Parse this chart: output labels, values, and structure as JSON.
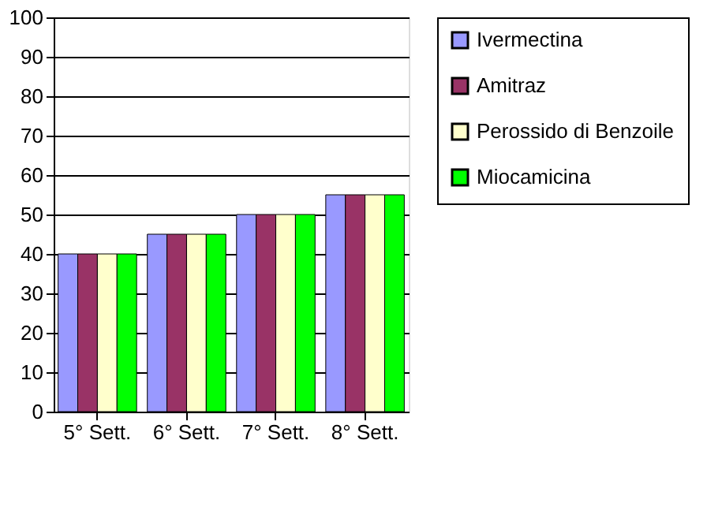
{
  "chart_data": {
    "type": "bar",
    "categories": [
      "5° Sett.",
      "6° Sett.",
      "7° Sett.",
      "8° Sett."
    ],
    "series": [
      {
        "name": "Ivermectina",
        "color": "#9999ff",
        "values": [
          40,
          45,
          50,
          55
        ]
      },
      {
        "name": "Amitraz",
        "color": "#993366",
        "values": [
          40,
          45,
          50,
          55
        ]
      },
      {
        "name": "Perossido di Benzoile",
        "color": "#ffffcc",
        "values": [
          40,
          45,
          50,
          55
        ]
      },
      {
        "name": "Miocamicina",
        "color": "#00ff00",
        "values": [
          40,
          45,
          50,
          55
        ]
      }
    ],
    "ylim": [
      0,
      100
    ],
    "yticks": [
      0,
      10,
      20,
      30,
      40,
      50,
      60,
      70,
      80,
      90,
      100
    ],
    "grid": "y",
    "legend": "right"
  }
}
